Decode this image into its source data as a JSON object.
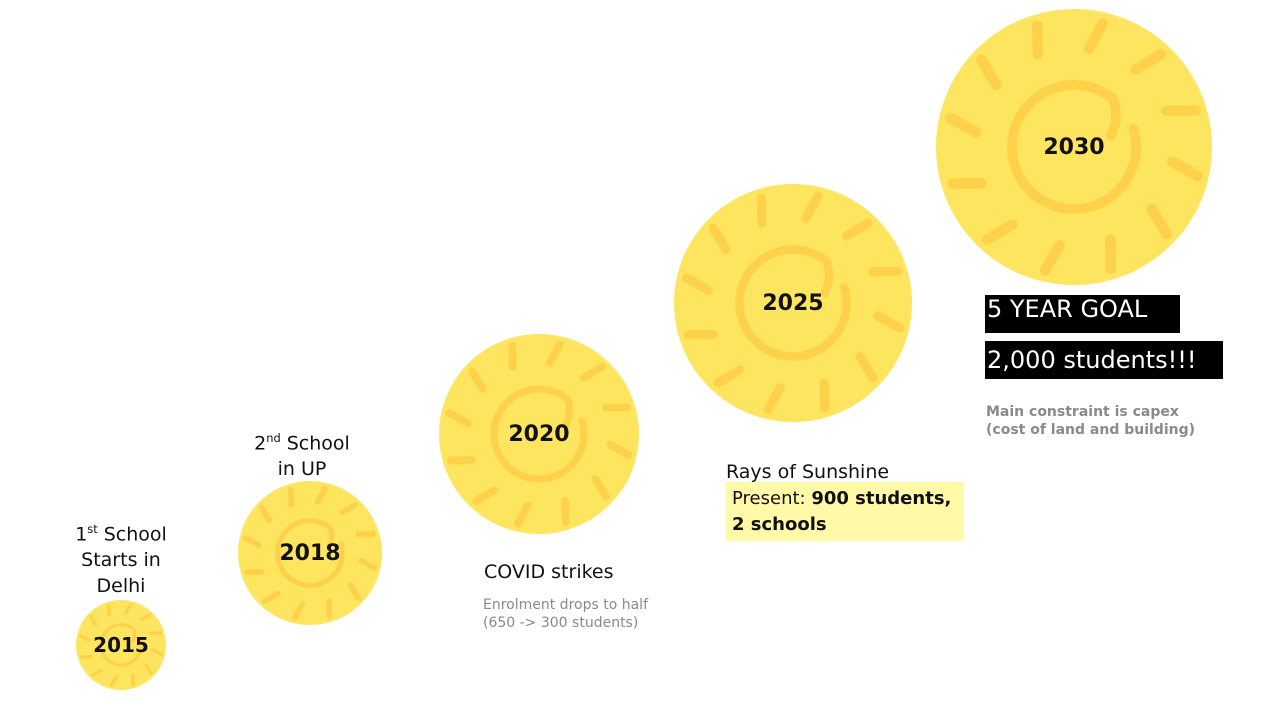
{
  "colors": {
    "sun_fill": "#fee55f",
    "sun_rays": "#fdd24a",
    "text": "#111111",
    "muted": "#8a8a8a",
    "highlight": "#fff9a8",
    "goal_bg": "#000000"
  },
  "milestones": [
    {
      "year": "2015",
      "title_line1_prefix": "1",
      "title_line1_sup": "st",
      "title_line1_suffix": " School",
      "title_line2": "Starts in",
      "title_line3": "Delhi"
    },
    {
      "year": "2018",
      "title_line1_prefix": "2",
      "title_line1_sup": "nd",
      "title_line1_suffix": " School",
      "title_line2": "in UP"
    },
    {
      "year": "2020",
      "title": "COVID strikes",
      "note_line1": "Enrolment drops to half",
      "note_line2": "(650 -> 300 students)"
    },
    {
      "year": "2025",
      "title": "Rays of Sunshine",
      "present_prefix": "Present: ",
      "present_bold1": "900 students,",
      "present_bold2": "2 schools"
    },
    {
      "year": "2030",
      "goal_title": "5 YEAR GOAL",
      "goal_value": "2,000 students!!!",
      "note_line1": "Main constraint is capex",
      "note_line2": "(cost of land and building)"
    }
  ]
}
